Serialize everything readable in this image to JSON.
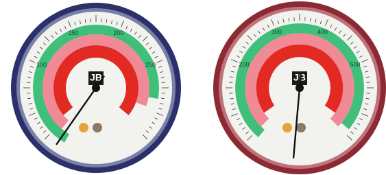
{
  "gauges": [
    {
      "logo": "JB",
      "scale_labels": [
        "100",
        "150",
        "200",
        "250"
      ]
    },
    {
      "logo": "JB",
      "scale_labels": [
        "200",
        "300",
        "400",
        "500"
      ]
    }
  ]
}
